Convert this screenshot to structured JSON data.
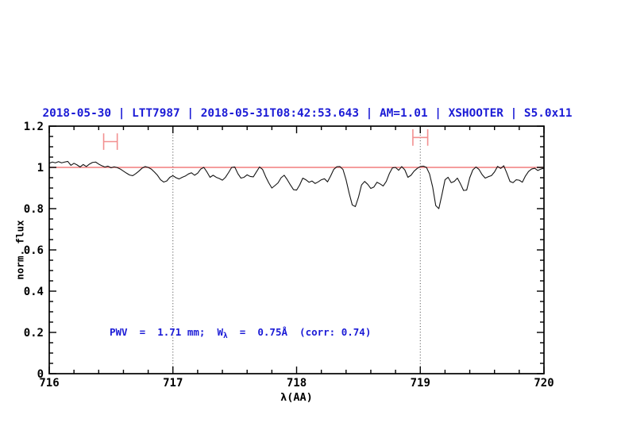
{
  "title": {
    "text": "2018-05-30 | LTT7987 | 2018-05-31T08:42:53.643 | AM=1.01 | XSHOOTER | S5.0x11",
    "color": "#1b1bd6"
  },
  "annotation": {
    "prefix": "PWV  =  1.71 mm;  W",
    "sub": "λ",
    "suffix": "  =  0.75Å  (corr: 0.74)",
    "color": "#1b1bd6"
  },
  "chart_data": {
    "type": "line",
    "title": "2018-05-30 | LTT7987 | 2018-05-31T08:42:53.643 | AM=1.01 | XSHOOTER | S5.0x11",
    "xlabel": "λ(AA)",
    "ylabel": "norm. flux",
    "xlim": [
      716,
      720
    ],
    "ylim": [
      0,
      1.2
    ],
    "grid": false,
    "legend": null,
    "x_major_ticks": [
      716,
      717,
      718,
      719,
      720
    ],
    "x_tick_labels": [
      "716",
      "717",
      "718",
      "719",
      "720"
    ],
    "x_minor_step": 0.2,
    "y_major_ticks": [
      0,
      0.2,
      0.4,
      0.6,
      0.8,
      1,
      1.2
    ],
    "y_tick_labels": [
      "0",
      "0.2",
      "0.4",
      "0.6",
      "0.8",
      "1",
      "1.2"
    ],
    "y_minor_step": 0.05,
    "vlines": {
      "x": [
        717,
        719
      ],
      "style": "dotted",
      "color": "#404040"
    },
    "continuum_line": {
      "y": 1.0,
      "color": "#f27d7d"
    },
    "range_markers": [
      {
        "x_min": 716.44,
        "x_max": 716.55,
        "y": 1.125,
        "cap_half_height": 0.04,
        "color": "#f29090"
      },
      {
        "x_min": 718.94,
        "x_max": 719.06,
        "y": 1.145,
        "cap_half_height": 0.04,
        "color": "#f29090"
      }
    ],
    "series": [
      {
        "name": "spectrum",
        "color": "#141414",
        "x_start": 716.0,
        "x_step": 0.025,
        "flux": [
          1.02,
          1.026,
          1.022,
          1.028,
          1.022,
          1.026,
          1.029,
          1.01,
          1.02,
          1.012,
          1.002,
          1.014,
          1.004,
          1.016,
          1.024,
          1.026,
          1.016,
          1.008,
          1.002,
          1.006,
          0.998,
          1.003,
          0.999,
          0.992,
          0.982,
          0.972,
          0.963,
          0.96,
          0.97,
          0.982,
          0.996,
          1.004,
          1.0,
          0.992,
          0.978,
          0.962,
          0.94,
          0.929,
          0.934,
          0.952,
          0.96,
          0.95,
          0.944,
          0.952,
          0.958,
          0.968,
          0.974,
          0.962,
          0.972,
          0.992,
          1.0,
          0.978,
          0.952,
          0.962,
          0.952,
          0.946,
          0.938,
          0.952,
          0.975,
          1.0,
          1.002,
          0.97,
          0.948,
          0.952,
          0.964,
          0.956,
          0.954,
          0.978,
          1.002,
          0.99,
          0.955,
          0.925,
          0.9,
          0.912,
          0.925,
          0.95,
          0.962,
          0.94,
          0.915,
          0.892,
          0.89,
          0.915,
          0.948,
          0.94,
          0.928,
          0.934,
          0.922,
          0.93,
          0.94,
          0.945,
          0.93,
          0.958,
          0.99,
          1.003,
          1.004,
          0.99,
          0.94,
          0.875,
          0.818,
          0.81,
          0.855,
          0.915,
          0.932,
          0.918,
          0.898,
          0.905,
          0.928,
          0.92,
          0.91,
          0.932,
          0.97,
          0.998,
          1.0,
          0.986,
          1.004,
          0.988,
          0.952,
          0.962,
          0.982,
          0.995,
          1.004,
          1.006,
          1.0,
          0.968,
          0.905,
          0.815,
          0.8,
          0.868,
          0.94,
          0.952,
          0.926,
          0.932,
          0.948,
          0.92,
          0.888,
          0.89,
          0.95,
          0.988,
          1.002,
          0.99,
          0.965,
          0.948,
          0.955,
          0.96,
          0.978,
          1.005,
          0.995,
          1.008,
          0.972,
          0.932,
          0.926,
          0.94,
          0.938,
          0.928,
          0.958,
          0.98,
          0.992,
          0.996,
          0.985,
          0.992,
          0.996
        ]
      }
    ]
  }
}
